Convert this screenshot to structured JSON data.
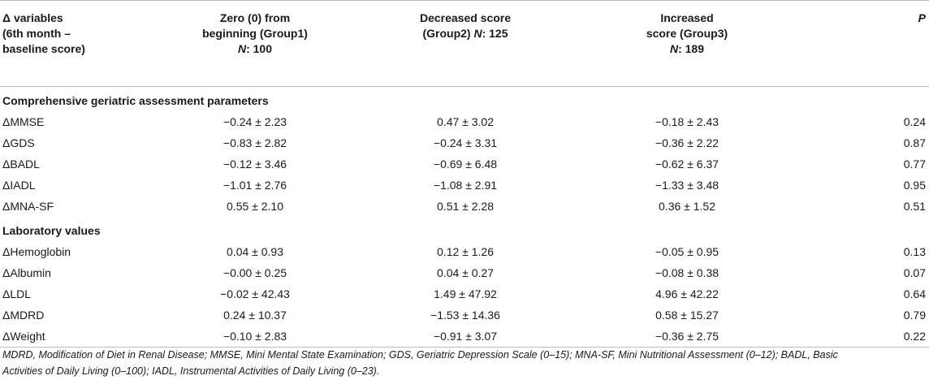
{
  "header": {
    "col0_line1": "Δ variables",
    "col0_line2": "(6th month –",
    "col0_line3": "baseline score)",
    "col1_line1": "Zero (0) from",
    "col1_line2": "beginning (Group1)",
    "col1_n_label": "N",
    "col1_n_value": ": 100",
    "col2_line1": "Decreased score",
    "col2_line2": "(Group2) ",
    "col2_n_label": "N",
    "col2_n_value": ": 125",
    "col3_line1": "Increased",
    "col3_line2": "score (Group3)",
    "col3_n_label": "N",
    "col3_n_value": ": 189",
    "col4": "P"
  },
  "sections": [
    {
      "title": "Comprehensive geriatric assessment parameters",
      "rows": [
        {
          "variable": "ΔMMSE",
          "g1": "−0.24 ± 2.23",
          "g2": "0.47 ± 3.02",
          "g3": "−0.18 ± 2.43",
          "p": "0.24"
        },
        {
          "variable": "ΔGDS",
          "g1": "−0.83 ± 2.82",
          "g2": "−0.24 ± 3.31",
          "g3": "−0.36 ± 2.22",
          "p": "0.87"
        },
        {
          "variable": "ΔBADL",
          "g1": "−0.12 ± 3.46",
          "g2": "−0.69 ± 6.48",
          "g3": "−0.62 ± 6.37",
          "p": "0.77"
        },
        {
          "variable": "ΔIADL",
          "g1": "−1.01 ± 2.76",
          "g2": "−1.08 ± 2.91",
          "g3": "−1.33 ± 3.48",
          "p": "0.95"
        },
        {
          "variable": "ΔMNA-SF",
          "g1": "0.55 ± 2.10",
          "g2": "0.51 ± 2.28",
          "g3": "0.36 ± 1.52",
          "p": "0.51"
        }
      ]
    },
    {
      "title": "Laboratory values",
      "rows": [
        {
          "variable": "ΔHemoglobin",
          "g1": "0.04 ± 0.93",
          "g2": "0.12 ± 1.26",
          "g3": "−0.05 ± 0.95",
          "p": "0.13"
        },
        {
          "variable": "ΔAlbumin",
          "g1": "−0.00 ± 0.25",
          "g2": "0.04 ± 0.27",
          "g3": "−0.08 ± 0.38",
          "p": "0.07"
        },
        {
          "variable": "ΔLDL",
          "g1": "−0.02 ± 42.43",
          "g2": "1.49 ± 47.92",
          "g3": "4.96 ± 42.22",
          "p": "0.64"
        },
        {
          "variable": "ΔMDRD",
          "g1": "0.24 ± 10.37",
          "g2": "−1.53 ± 14.36",
          "g3": "0.58 ± 15.27",
          "p": "0.79"
        },
        {
          "variable": "ΔWeight",
          "g1": "−0.10 ± 2.83",
          "g2": "−0.91 ± 3.07",
          "g3": "−0.36 ± 2.75",
          "p": "0.22"
        }
      ]
    }
  ],
  "footnote": {
    "line1": "MDRD, Modification of Diet in Renal Disease; MMSE, Mini Mental State Examination; GDS, Geriatric Depression Scale (0–15); MNA-SF, Mini Nutritional Assessment (0–12); BADL, Basic",
    "line2": "Activities of Daily Living (0–100); IADL, Instrumental Activities of Daily Living (0–23)."
  }
}
